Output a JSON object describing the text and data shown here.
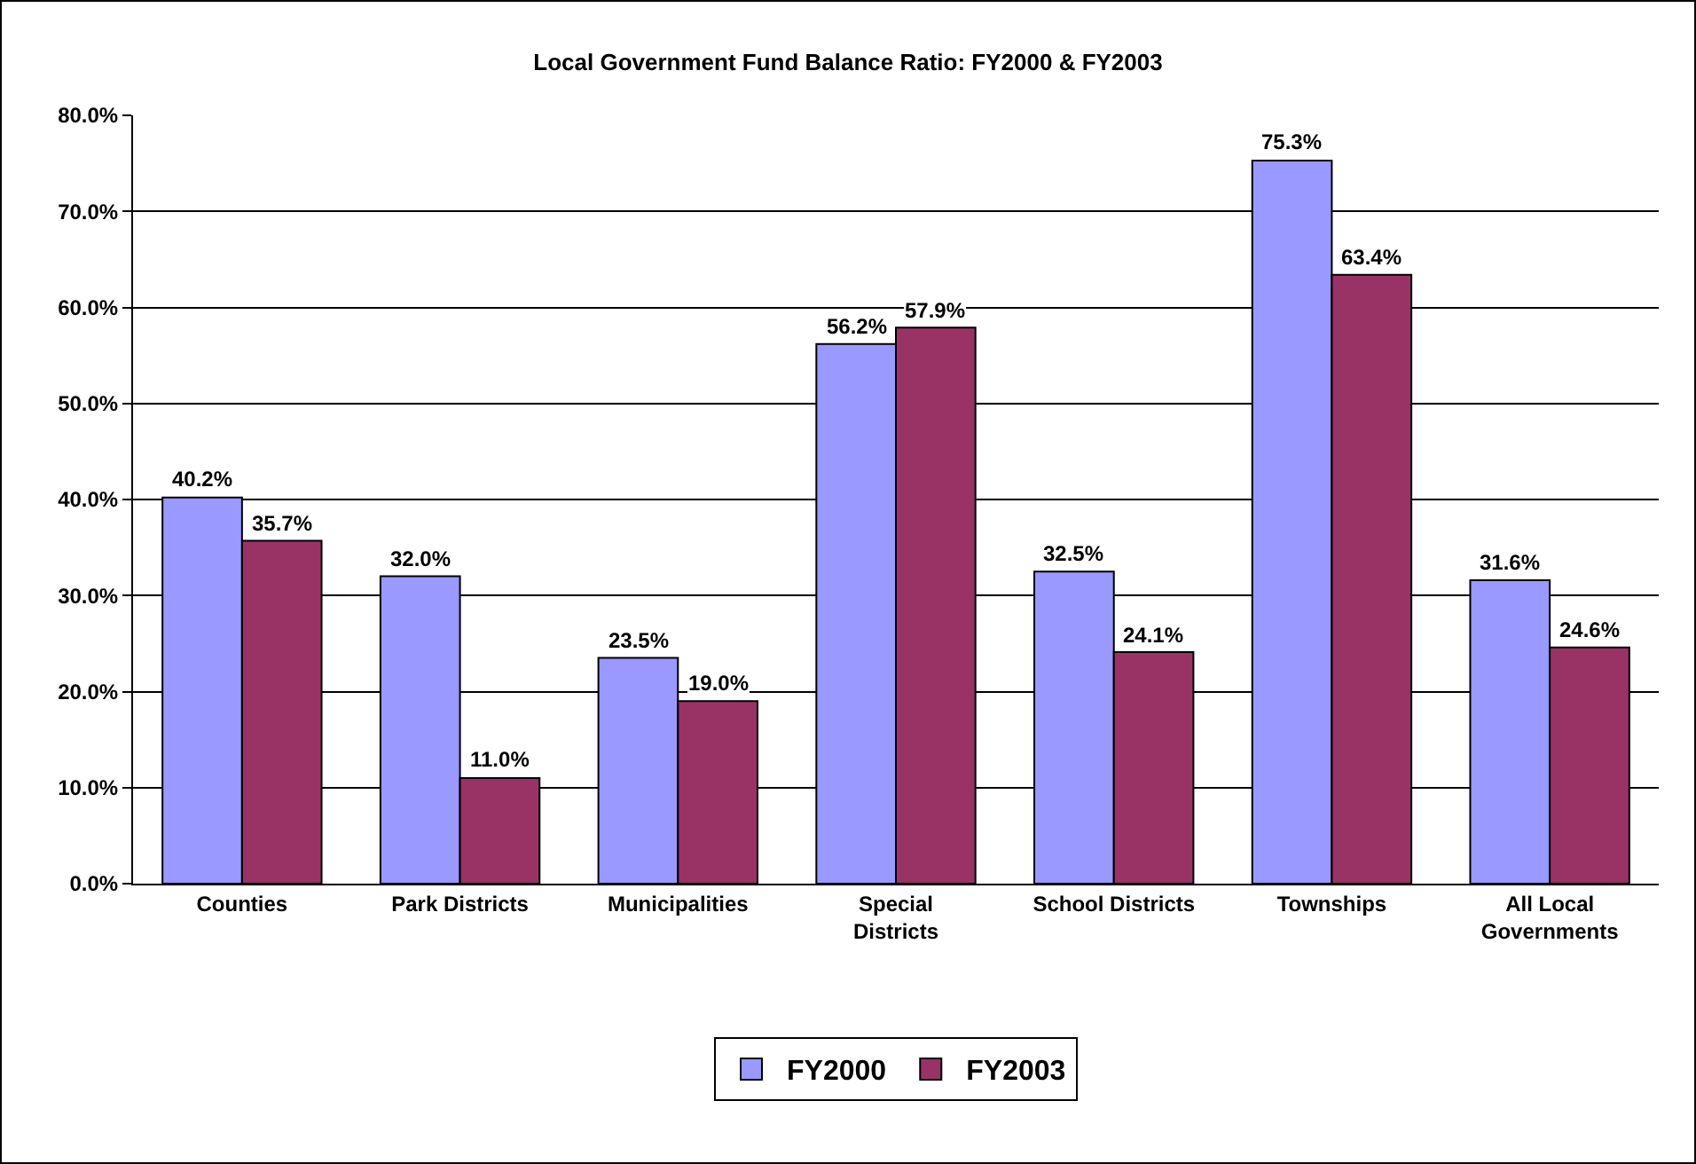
{
  "chart_data": {
    "type": "bar",
    "title": "Local Government Fund Balance Ratio: FY2000 & FY2003",
    "categories": [
      "Counties",
      "Park Districts",
      "Municipalities",
      "Special Districts",
      "School Districts",
      "Townships",
      "All Local Governments"
    ],
    "series": [
      {
        "name": "FY2000",
        "color": "#9999ff",
        "values": [
          40.2,
          32.0,
          23.5,
          56.2,
          32.5,
          75.3,
          31.6
        ],
        "value_labels": [
          "40.2%",
          "32.0%",
          "23.5%",
          "56.2%",
          "32.5%",
          "75.3%",
          "31.6%"
        ]
      },
      {
        "name": "FY2003",
        "color": "#993366",
        "values": [
          35.7,
          11.0,
          19.0,
          57.9,
          24.1,
          63.4,
          24.6
        ],
        "value_labels": [
          "35.7%",
          "11.0%",
          "19.0%",
          "57.9%",
          "24.1%",
          "63.4%",
          "24.6%"
        ]
      }
    ],
    "ylim": [
      0,
      80
    ],
    "yticks": [
      {
        "value": 0,
        "label": "0.0%"
      },
      {
        "value": 10,
        "label": "10.0%"
      },
      {
        "value": 20,
        "label": "20.0%"
      },
      {
        "value": 30,
        "label": "30.0%"
      },
      {
        "value": 40,
        "label": "40.0%"
      },
      {
        "value": 50,
        "label": "50.0%"
      },
      {
        "value": 60,
        "label": "60.0%"
      },
      {
        "value": 70,
        "label": "70.0%"
      },
      {
        "value": 80,
        "label": "80.0%"
      }
    ],
    "grid": "y",
    "legend": "bottom"
  }
}
